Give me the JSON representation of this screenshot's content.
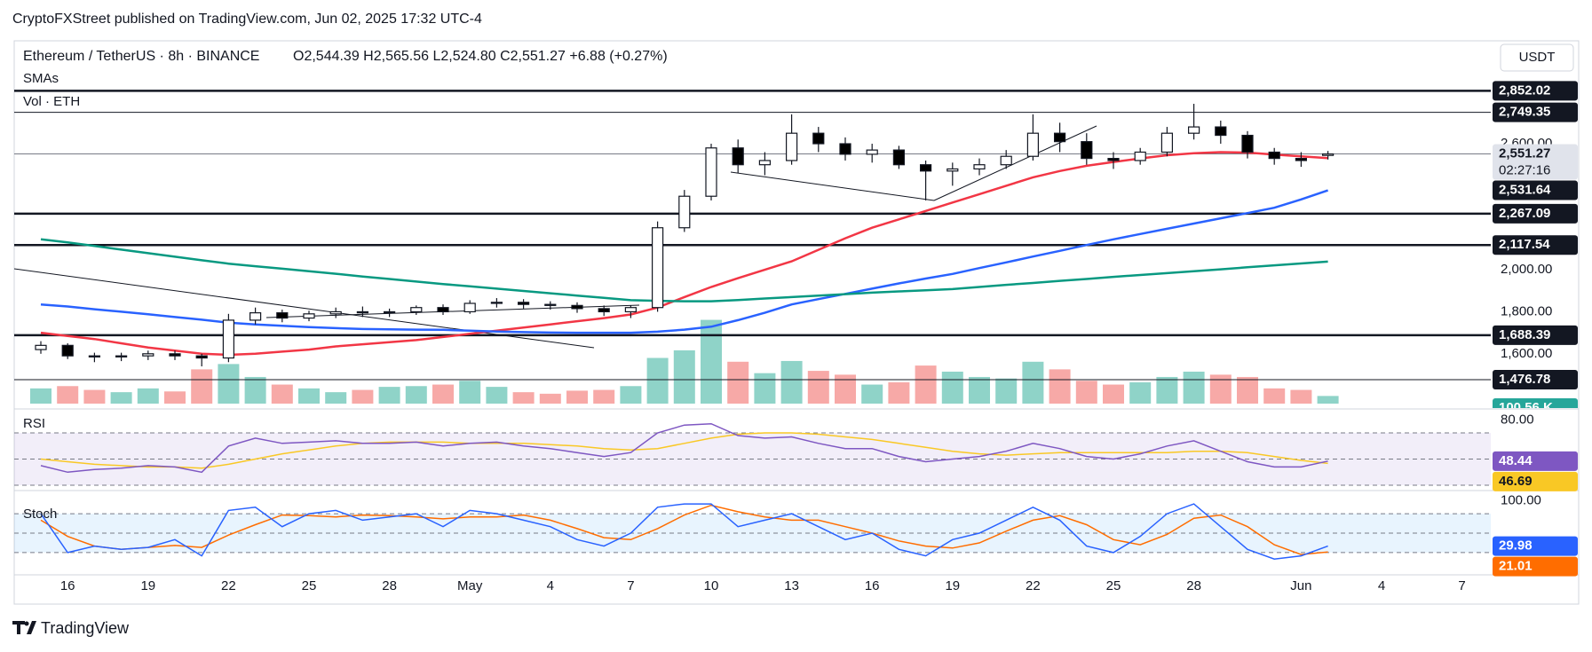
{
  "chart_data": {
    "type": "candlestick",
    "publisher": "CryptoFXStreet published on TradingView.com, Jun 02, 2025 17:32 UTC-4",
    "title": "Ethereum / TetherUS · 8h · BINANCE",
    "ohlc_text": "O2,544.39  H2,565.56  L2,524.80  C2,551.27  +6.88 (+0.27%)",
    "sma_label": "SMAs",
    "currency": "USDT",
    "countdown": "02:27:16",
    "footer": "TradingView",
    "categories": [
      null,
      "16",
      null,
      null,
      "19",
      null,
      null,
      "22",
      null,
      null,
      "25",
      null,
      null,
      "28",
      null,
      null,
      "May",
      null,
      null,
      "4",
      null,
      null,
      "7",
      null,
      null,
      "10",
      null,
      null,
      "13",
      null,
      null,
      "16",
      null,
      null,
      "19",
      null,
      null,
      "22",
      null,
      null,
      "25",
      null,
      null,
      "28",
      null,
      null,
      null,
      "Jun",
      null,
      null,
      "4",
      null,
      null,
      "7",
      null
    ],
    "open": [
      1620,
      1640,
      1590,
      1585,
      1590,
      1600,
      1590,
      1580,
      1760,
      1795,
      1770,
      1790,
      1800,
      1795,
      1800,
      1820,
      1800,
      1840,
      1845,
      1835,
      1830,
      1815,
      1800,
      1820,
      2200,
      2350,
      2580,
      2500,
      2520,
      2650,
      2600,
      2550,
      2570,
      2500,
      2470,
      2480,
      2500,
      2540,
      2650,
      2610,
      2530,
      2520,
      2560,
      2650,
      2680,
      2640,
      2560,
      2530,
      2544.39,
      null,
      null,
      null,
      null,
      null,
      null
    ],
    "high": [
      1660,
      1650,
      1605,
      1605,
      1615,
      1615,
      1600,
      1790,
      1820,
      1810,
      1805,
      1820,
      1825,
      1815,
      1830,
      1835,
      1855,
      1865,
      1860,
      1850,
      1845,
      1830,
      1830,
      2230,
      2380,
      2600,
      2620,
      2560,
      2740,
      2680,
      2630,
      2600,
      2590,
      2520,
      2510,
      2530,
      2570,
      2740,
      2700,
      2650,
      2560,
      2580,
      2680,
      2790,
      2710,
      2660,
      2580,
      2560,
      2565.56,
      null,
      null,
      null,
      null,
      null,
      null
    ],
    "low": [
      1600,
      1575,
      1560,
      1565,
      1570,
      1570,
      1540,
      1560,
      1740,
      1750,
      1755,
      1770,
      1775,
      1775,
      1785,
      1785,
      1790,
      1820,
      1815,
      1810,
      1795,
      1780,
      1770,
      1800,
      2180,
      2330,
      2460,
      2450,
      2500,
      2560,
      2520,
      2510,
      2480,
      2330,
      2400,
      2450,
      2480,
      2520,
      2560,
      2500,
      2480,
      2500,
      2540,
      2620,
      2600,
      2530,
      2500,
      2490,
      2524.8,
      null,
      null,
      null,
      null,
      null,
      null
    ],
    "close": [
      1640,
      1590,
      1585,
      1590,
      1600,
      1590,
      1580,
      1760,
      1795,
      1770,
      1790,
      1800,
      1795,
      1800,
      1820,
      1800,
      1840,
      1845,
      1835,
      1830,
      1815,
      1800,
      1820,
      2200,
      2350,
      2580,
      2500,
      2520,
      2650,
      2600,
      2550,
      2570,
      2500,
      2470,
      2480,
      2500,
      2540,
      2650,
      2610,
      2530,
      2520,
      2560,
      2650,
      2680,
      2640,
      2560,
      2530,
      2520,
      2551.27,
      null,
      null,
      null,
      null,
      null,
      null
    ],
    "up_color": "#ffffff",
    "down_color": "#000000",
    "ylim": [
      1350,
      3090
    ],
    "yticks": [
      {
        "value": 1600,
        "label": "1,600.00"
      },
      {
        "value": 1800,
        "label": "1,800.00"
      },
      {
        "value": 2000,
        "label": "2,000.00"
      },
      {
        "value": 2600,
        "label": "2,600.00"
      }
    ],
    "sma": [
      {
        "color": "#f23645",
        "values": [
          1700,
          1685,
          1670,
          1650,
          1630,
          1615,
          1600,
          1595,
          1600,
          1610,
          1620,
          1635,
          1645,
          1655,
          1665,
          1680,
          1695,
          1710,
          1725,
          1740,
          1755,
          1770,
          1787,
          1820,
          1870,
          1918,
          1960,
          2000,
          2040,
          2095,
          2150,
          2200,
          2240,
          2280,
          2320,
          2360,
          2400,
          2440,
          2470,
          2495,
          2513,
          2530,
          2545,
          2555,
          2560,
          2558,
          2548,
          2540,
          2531.64,
          null,
          null,
          null,
          null,
          null,
          null
        ]
      },
      {
        "color": "#2962ff",
        "values": [
          1835,
          1825,
          1812,
          1800,
          1788,
          1775,
          1762,
          1748,
          1740,
          1733,
          1727,
          1722,
          1718,
          1716,
          1715,
          1714,
          1710,
          1706,
          1703,
          1701,
          1700,
          1700,
          1700,
          1705,
          1715,
          1729,
          1760,
          1795,
          1835,
          1860,
          1885,
          1910,
          1935,
          1958,
          1980,
          2008,
          2035,
          2063,
          2090,
          2118,
          2145,
          2170,
          2195,
          2220,
          2245,
          2270,
          2295,
          2335,
          2378,
          null,
          null,
          null,
          null,
          null,
          null
        ]
      },
      {
        "color": "#089981",
        "values": [
          2145,
          2130,
          2113,
          2096,
          2079,
          2062,
          2045,
          2029,
          2017,
          2005,
          1993,
          1981,
          1968,
          1956,
          1944,
          1932,
          1921,
          1910,
          1899,
          1888,
          1877,
          1866,
          1855,
          1852,
          1850,
          1850,
          1856,
          1863,
          1870,
          1877,
          1884,
          1891,
          1897,
          1902,
          1908,
          1918,
          1928,
          1937,
          1947,
          1956,
          1966,
          1975,
          1984,
          1993,
          2002,
          2012,
          2021,
          2030,
          2039,
          null,
          null,
          null,
          null,
          null,
          null
        ]
      }
    ],
    "levels": [
      {
        "value": 2852.02,
        "label": "2,852.02",
        "line": "thick"
      },
      {
        "value": 2749.35,
        "label": "2,749.35",
        "line": "thin"
      },
      {
        "value": 2551.27,
        "label": "2,551.27",
        "line": "current"
      },
      {
        "value": 2531.64,
        "label": "2,531.64",
        "line": "none"
      },
      {
        "value": 2267.09,
        "label": "2,267.09",
        "line": "thick"
      },
      {
        "value": 2117.54,
        "label": "2,117.54",
        "line": "thick"
      },
      {
        "value": 1688.39,
        "label": "1,688.39",
        "line": "thick"
      },
      {
        "value": 1476.78,
        "label": "1,476.78",
        "line": "thin"
      }
    ],
    "volume": {
      "label": "Vol · ETH",
      "up_color": "#8fd3c8",
      "down_color": "#f7a9a7",
      "ylim": [
        0,
        1200000
      ],
      "values": [
        200000,
        230000,
        180000,
        150000,
        200000,
        160000,
        450000,
        520000,
        350000,
        250000,
        200000,
        150000,
        180000,
        220000,
        230000,
        250000,
        300000,
        220000,
        150000,
        130000,
        170000,
        180000,
        230000,
        600000,
        700000,
        1100000,
        550000,
        400000,
        560000,
        430000,
        380000,
        250000,
        280000,
        500000,
        420000,
        350000,
        330000,
        550000,
        450000,
        300000,
        250000,
        280000,
        350000,
        420000,
        380000,
        350000,
        200000,
        180000,
        100560,
        null,
        null,
        null,
        null,
        null,
        null
      ],
      "last_label": "100.56 K"
    },
    "rsi": {
      "label": "RSI",
      "color": "#7e57c2",
      "ma_color": "#f9c825",
      "ylim": [
        26.6,
        87
      ],
      "yticks": [
        {
          "value": 80,
          "label": "80.00"
        }
      ],
      "bands": [
        30,
        50,
        70
      ],
      "values": [
        45,
        40,
        42,
        43,
        45,
        44,
        40,
        60,
        66,
        62,
        63,
        64,
        62,
        62,
        63,
        60,
        62,
        63,
        60,
        58,
        55,
        52,
        55,
        70,
        76,
        77,
        68,
        66,
        67,
        62,
        58,
        58,
        52,
        48,
        50,
        52,
        56,
        62,
        58,
        52,
        50,
        54,
        60,
        64,
        56,
        48,
        44,
        44,
        48.44,
        null,
        null,
        null,
        null,
        null,
        null
      ],
      "ma": [
        50,
        48,
        46,
        45,
        44,
        44,
        43,
        46,
        50,
        54,
        57,
        60,
        62,
        63,
        63,
        63,
        62,
        62,
        62,
        61,
        60,
        58,
        57,
        58,
        62,
        66,
        69,
        70,
        70,
        69,
        67,
        65,
        62,
        59,
        56,
        54,
        53,
        54,
        55,
        55,
        55,
        55,
        55,
        56,
        56,
        55,
        52,
        49,
        46.69,
        null,
        null,
        null,
        null,
        null,
        null
      ]
    },
    "stoch": {
      "label": "Stoch",
      "k_color": "#2962ff",
      "d_color": "#ff6d00",
      "ylim": [
        -13,
        113
      ],
      "yticks": [
        {
          "value": 100,
          "label": "100.00"
        }
      ],
      "bands": [
        20,
        50,
        80
      ],
      "k": [
        80,
        20,
        30,
        25,
        28,
        40,
        15,
        85,
        90,
        60,
        80,
        85,
        70,
        75,
        80,
        60,
        85,
        80,
        70,
        60,
        40,
        30,
        50,
        90,
        95,
        95,
        60,
        70,
        80,
        60,
        40,
        50,
        25,
        15,
        40,
        50,
        70,
        90,
        70,
        30,
        20,
        45,
        80,
        95,
        60,
        25,
        10,
        15,
        29.98,
        null,
        null,
        null,
        null,
        null,
        null
      ],
      "d": [
        70,
        45,
        30,
        25,
        28,
        31,
        28,
        47,
        63,
        78,
        77,
        75,
        78,
        77,
        75,
        72,
        75,
        75,
        78,
        70,
        57,
        43,
        40,
        57,
        78,
        93,
        83,
        75,
        70,
        70,
        60,
        50,
        38,
        30,
        27,
        35,
        53,
        70,
        77,
        63,
        40,
        32,
        48,
        73,
        78,
        60,
        32,
        17,
        21.01,
        null,
        null,
        null,
        null,
        null,
        null
      ]
    }
  }
}
